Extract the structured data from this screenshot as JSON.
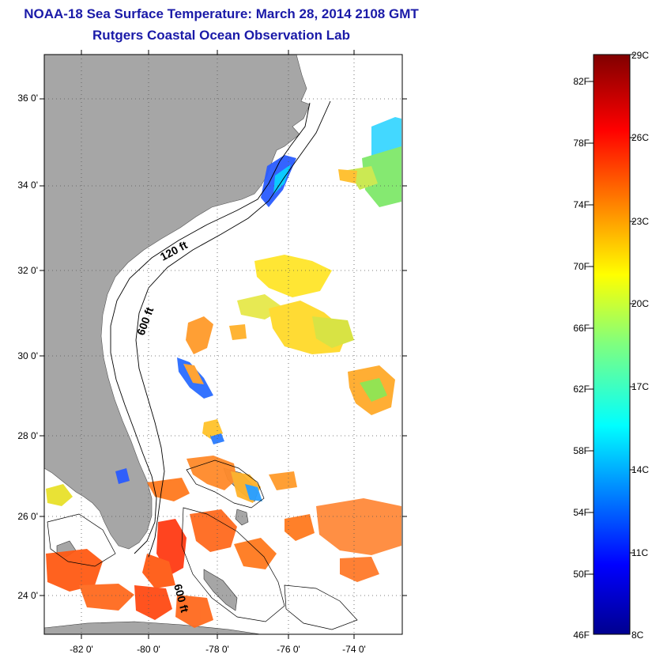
{
  "title": "NOAA-18 Sea Surface Temperature:  March 28, 2014 2108 GMT",
  "subtitle": "Rutgers Coastal Ocean Observation Lab",
  "map": {
    "lat_ticks": [
      "36 0'",
      "34 0'",
      "32 0'",
      "30 0'",
      "28 0'",
      "26 0'",
      "24 0'"
    ],
    "lon_ticks": [
      "-82 0'",
      "-80 0'",
      "-78 0'",
      "-76 0'",
      "-74 0'"
    ],
    "contour_labels": [
      "120 ft",
      "600 ft",
      "600 ft"
    ],
    "land_color": "#a6a6a6"
  },
  "colorbar": {
    "fahrenheit_labels": [
      "82F",
      "78F",
      "74F",
      "70F",
      "66F",
      "62F",
      "58F",
      "54F",
      "50F",
      "46F"
    ],
    "celsius_labels": [
      "29C",
      "26C",
      "23C",
      "20C",
      "17C",
      "14C",
      "11C",
      "8C"
    ],
    "colormap": "jet"
  }
}
